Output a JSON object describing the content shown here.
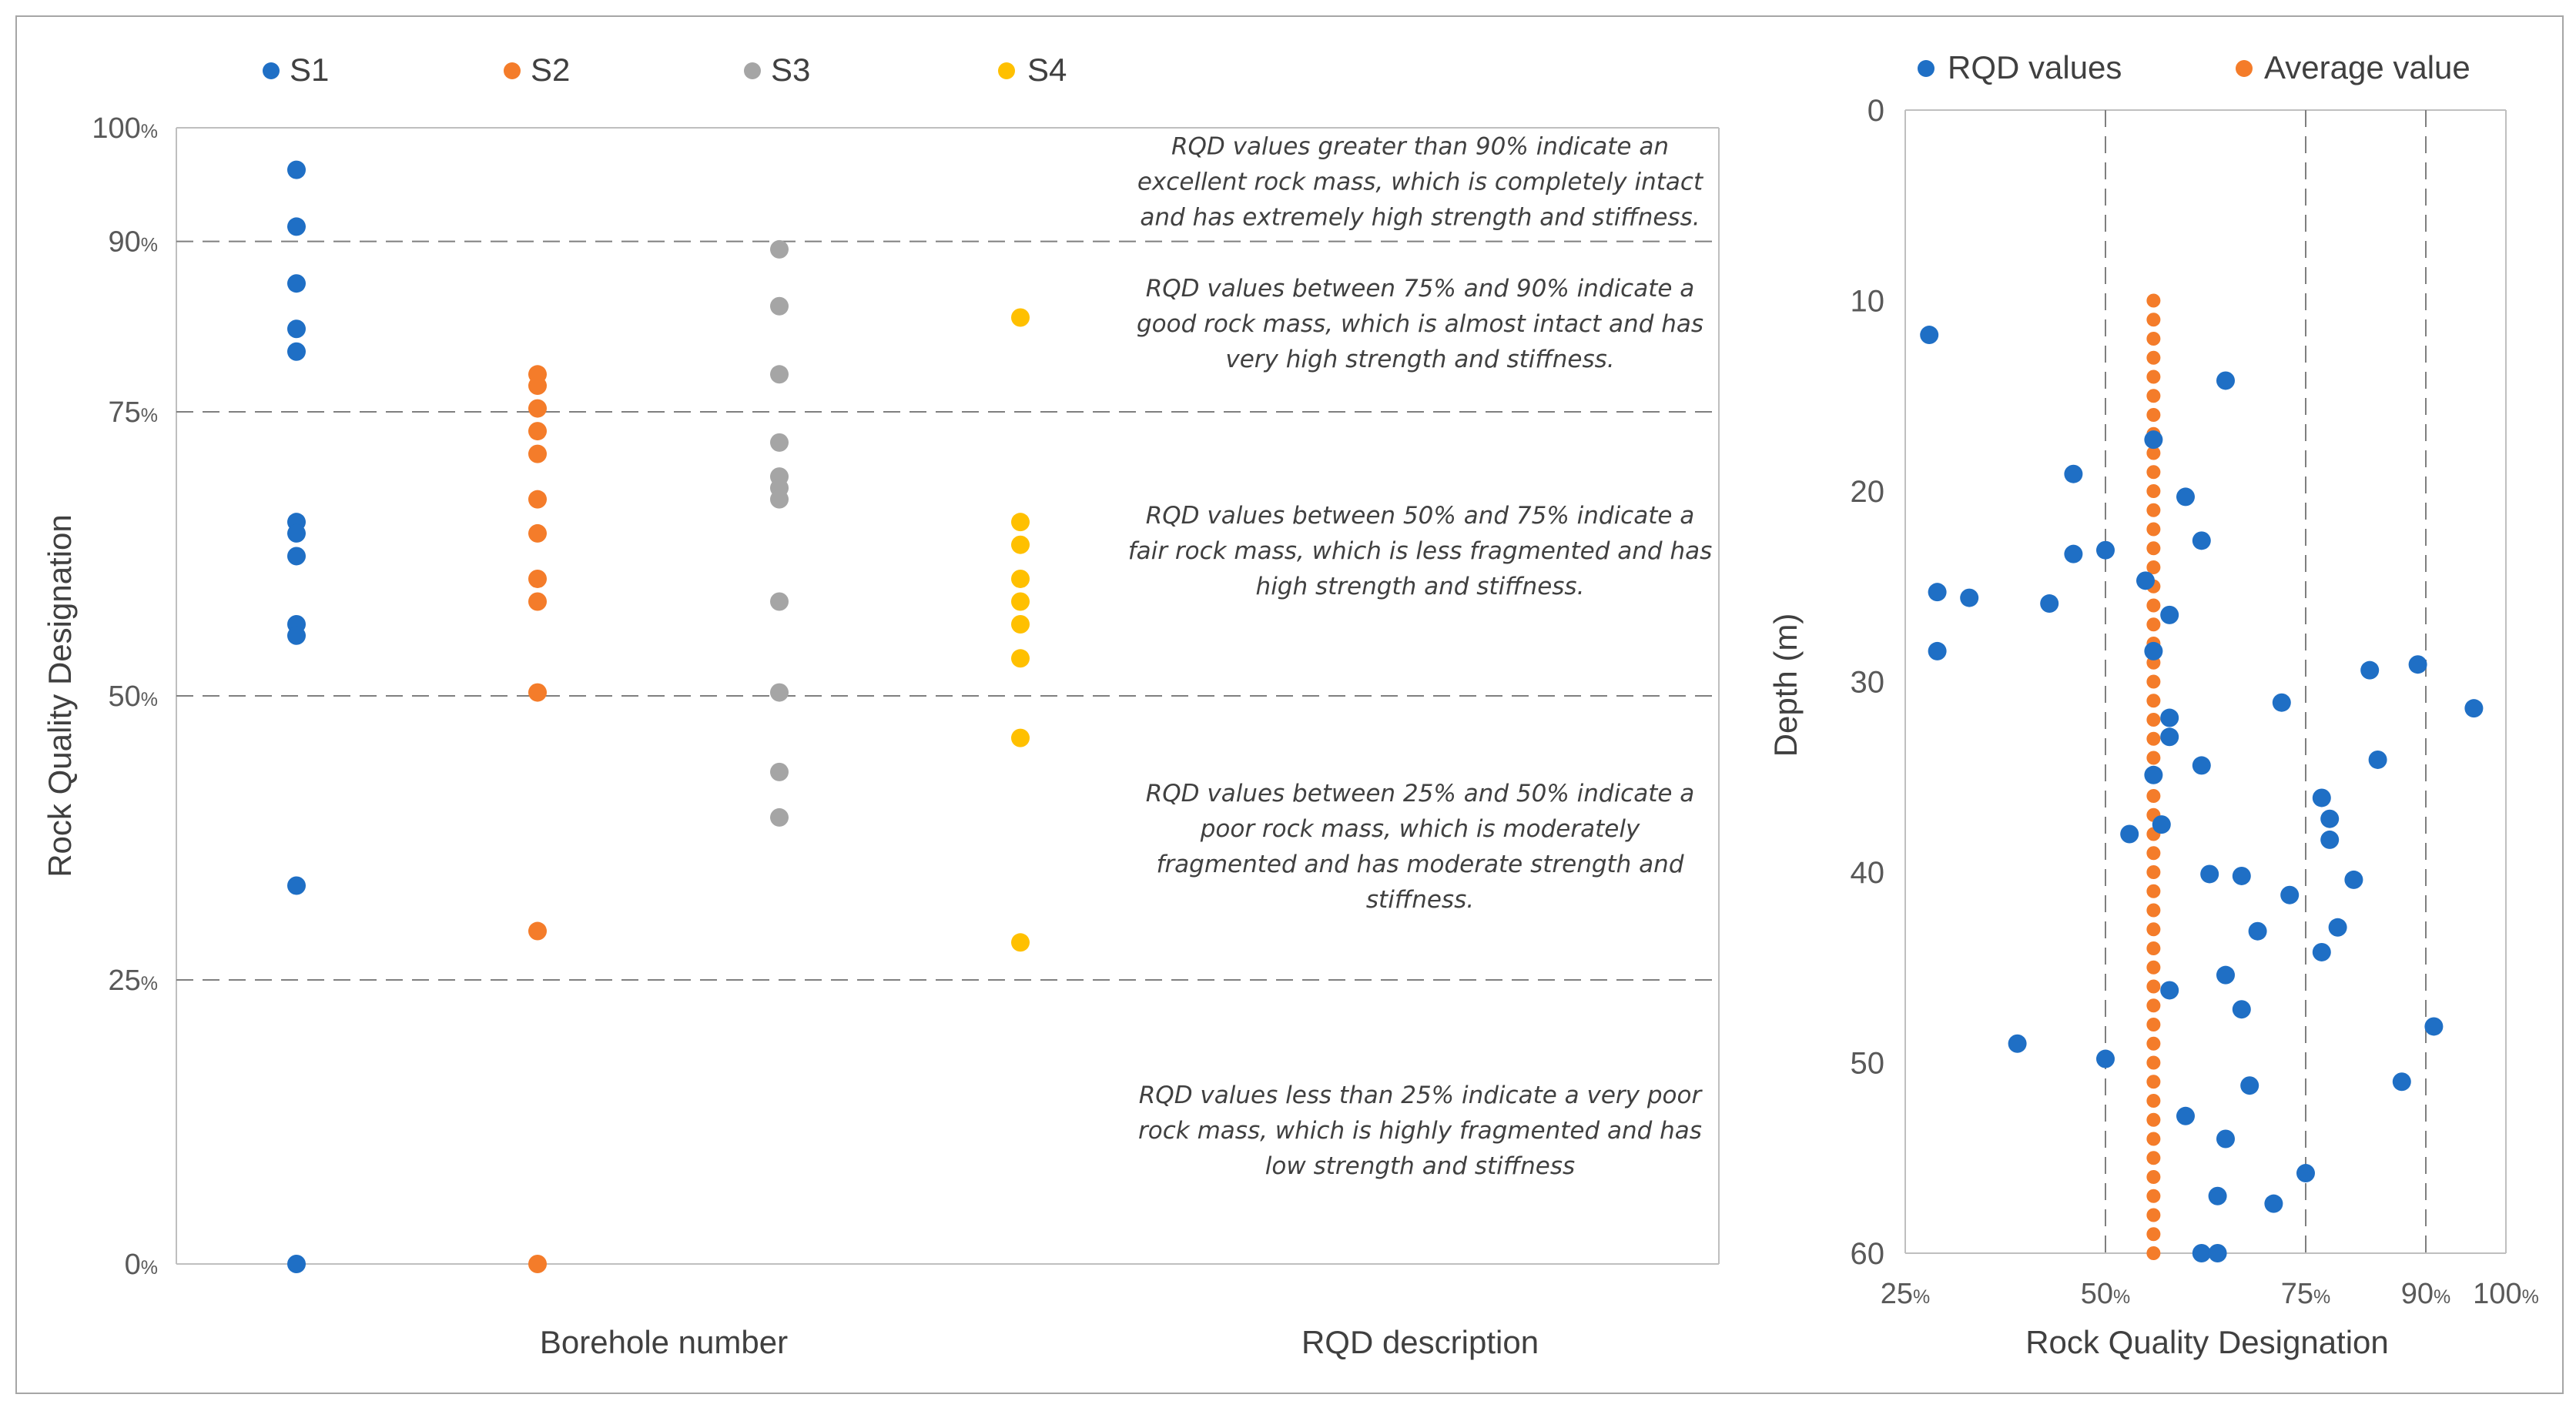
{
  "colors": {
    "s1": "#1F6FC5",
    "s2": "#F47C2A",
    "s3": "#A5A5A5",
    "s4": "#FFC000",
    "rqd": "#1F6FC5",
    "avg": "#F47C2A",
    "axis": "#BFBFBF",
    "grid": "#7F7F7F",
    "frame": "#A6A6A6"
  },
  "chart_data": [
    {
      "type": "scatter",
      "title": "",
      "xlabel": "Borehole number",
      "xlabel2": "RQD description",
      "ylabel": "Rock Quality Designation",
      "ylim": [
        0,
        100
      ],
      "yticks": [
        {
          "num": "0",
          "pct": "%",
          "value": 0
        },
        {
          "num": "25",
          "pct": "%",
          "value": 25
        },
        {
          "num": "50",
          "pct": "%",
          "value": 50
        },
        {
          "num": "75",
          "pct": "%",
          "value": 75
        },
        {
          "num": "90",
          "pct": "%",
          "value": 90
        },
        {
          "num": "100",
          "pct": "%",
          "value": 100
        }
      ],
      "reference_lines": [
        25,
        50,
        75,
        90
      ],
      "legend_position": "top",
      "series": [
        {
          "name": "S1",
          "key": "s1",
          "values": [
            96.3,
            91.3,
            86.3,
            82.3,
            80.3,
            65.3,
            64.3,
            62.3,
            56.3,
            55.3,
            33.3,
            0
          ]
        },
        {
          "name": "S2",
          "key": "s2",
          "values": [
            78.3,
            77.3,
            75.3,
            73.3,
            71.3,
            67.3,
            64.3,
            60.3,
            58.3,
            50.3,
            29.3,
            0
          ]
        },
        {
          "name": "S3",
          "key": "s3",
          "values": [
            89.3,
            84.3,
            78.3,
            72.3,
            69.3,
            68.3,
            67.3,
            58.3,
            50.3,
            43.3,
            39.3
          ]
        },
        {
          "name": "S4",
          "key": "s4",
          "values": [
            83.3,
            65.3,
            63.3,
            60.3,
            58.3,
            56.3,
            53.3,
            46.3,
            28.3
          ]
        }
      ],
      "descriptions": [
        {
          "center": 95.3,
          "lines": [
            "RQD values greater than 90% indicate an",
            "excellent rock mass, which is completely intact",
            "and has extremely high strength and stiffness."
          ]
        },
        {
          "center": 82.8,
          "lines": [
            "RQD values between 75% and 90% indicate a",
            "good rock mass, which is almost intact and has",
            "very high strength and stiffness."
          ]
        },
        {
          "center": 62.8,
          "lines": [
            "RQD values between 50% and 75% indicate a",
            "fair rock mass, which is less fragmented and has",
            "high strength and stiffness."
          ]
        },
        {
          "center": 36.8,
          "lines": [
            "RQD values between 25% and 50% indicate a",
            "poor rock mass, which is moderately",
            "fragmented and has moderate strength and",
            "stiffness."
          ]
        },
        {
          "center": 11.8,
          "lines": [
            "RQD values less than 25% indicate a very poor",
            "rock mass, which is highly fragmented and has",
            "low strength and stiffness"
          ]
        }
      ]
    },
    {
      "type": "scatter",
      "title": "",
      "xlabel": "Rock Quality Designation",
      "ylabel": "Depth (m)",
      "xlim": [
        25,
        100
      ],
      "ylim": [
        0,
        60
      ],
      "y_inverted": true,
      "xticks": [
        {
          "num": "25",
          "pct": "%",
          "value": 25
        },
        {
          "num": "50",
          "pct": "%",
          "value": 50
        },
        {
          "num": "75",
          "pct": "%",
          "value": 75
        },
        {
          "num": "90",
          "pct": "%",
          "value": 90
        },
        {
          "num": "100",
          "pct": "%",
          "value": 100
        }
      ],
      "yticks": [
        "0",
        "10",
        "20",
        "30",
        "40",
        "50",
        "60"
      ],
      "reference_lines": [
        50,
        75,
        90
      ],
      "legend_position": "top",
      "series": [
        {
          "name": "RQD values",
          "key": "rqd",
          "points": [
            [
              28,
              11.8
            ],
            [
              29,
              25.3
            ],
            [
              33,
              25.6
            ],
            [
              29,
              28.4
            ],
            [
              43,
              25.9
            ],
            [
              46,
              19.1
            ],
            [
              46,
              23.3
            ],
            [
              50,
              23.1
            ],
            [
              55,
              24.7
            ],
            [
              56,
              17.3
            ],
            [
              58,
              26.5
            ],
            [
              56,
              28.4
            ],
            [
              60,
              20.3
            ],
            [
              62,
              22.6
            ],
            [
              65,
              14.2
            ],
            [
              58,
              31.9
            ],
            [
              58,
              32.9
            ],
            [
              56,
              34.9
            ],
            [
              62,
              34.4
            ],
            [
              53,
              38.0
            ],
            [
              57,
              37.5
            ],
            [
              72,
              31.1
            ],
            [
              63,
              40.1
            ],
            [
              67,
              40.2
            ],
            [
              73,
              41.2
            ],
            [
              69,
              43.1
            ],
            [
              65,
              45.4
            ],
            [
              58,
              46.2
            ],
            [
              67,
              47.2
            ],
            [
              77,
              36.1
            ],
            [
              78,
              37.2
            ],
            [
              78,
              38.3
            ],
            [
              81,
              40.4
            ],
            [
              79,
              42.9
            ],
            [
              77,
              44.2
            ],
            [
              83,
              29.4
            ],
            [
              89,
              29.1
            ],
            [
              84,
              34.1
            ],
            [
              96,
              31.4
            ],
            [
              91,
              48.1
            ],
            [
              87,
              51.0
            ],
            [
              39,
              49.0
            ],
            [
              50,
              49.8
            ],
            [
              68,
              51.2
            ],
            [
              60,
              52.8
            ],
            [
              65,
              54.0
            ],
            [
              75,
              55.8
            ],
            [
              64,
              57.0
            ],
            [
              71,
              57.4
            ],
            [
              62,
              60.0
            ],
            [
              64,
              60.0
            ]
          ]
        },
        {
          "name": "Average value",
          "key": "avg",
          "x": 56,
          "depth_from": 10,
          "depth_to": 60,
          "depth_step": 1
        }
      ]
    }
  ]
}
